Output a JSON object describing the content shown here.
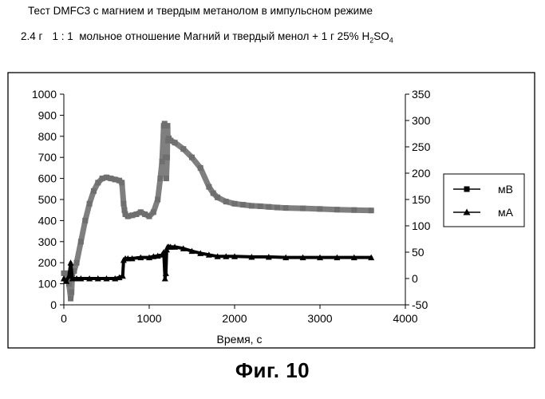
{
  "header": {
    "title": "Тест DMFC3 с магнием и твердым метанолом в импульсном режиме",
    "subtitle_mass": "2.4 г",
    "subtitle_ratio": "1 : 1",
    "subtitle_text": "мольное отношение Магний и твердый менол + 1 г  25% H",
    "subtitle_sub1": "2",
    "subtitle_so": "SO",
    "subtitle_sub2": "4"
  },
  "figure_caption": "Фиг. 10",
  "chart_data": {
    "type": "line",
    "title": "",
    "xlabel": "Время, с",
    "ylabel_left": "",
    "ylabel_right": "",
    "xlim": [
      0,
      4000
    ],
    "ylim_left": [
      0,
      1000
    ],
    "ylim_right": [
      -50,
      350
    ],
    "x_ticks": [
      0,
      1000,
      2000,
      3000,
      4000
    ],
    "y_left_ticks": [
      0,
      100,
      200,
      300,
      400,
      500,
      600,
      700,
      800,
      900,
      1000
    ],
    "y_right_ticks": [
      -50,
      0,
      50,
      100,
      150,
      200,
      250,
      300,
      350
    ],
    "grid": false,
    "legend_position": "right",
    "series": [
      {
        "name": "мВ",
        "axis": "left",
        "marker": "square",
        "color": "#7f7f7f",
        "x": [
          0,
          30,
          60,
          80,
          90,
          100,
          120,
          150,
          200,
          250,
          300,
          350,
          400,
          450,
          500,
          550,
          600,
          650,
          680,
          700,
          710,
          720,
          750,
          800,
          850,
          900,
          950,
          1000,
          1050,
          1100,
          1130,
          1150,
          1170,
          1180,
          1190,
          1200,
          1210,
          1215,
          1220,
          1230,
          1250,
          1300,
          1400,
          1500,
          1600,
          1700,
          1750,
          1800,
          1900,
          2000,
          2100,
          2200,
          2300,
          2400,
          2500,
          2600,
          2800,
          3000,
          3200,
          3400,
          3600
        ],
        "y": [
          150,
          150,
          100,
          30,
          60,
          150,
          160,
          200,
          300,
          400,
          480,
          540,
          580,
          600,
          605,
          600,
          595,
          590,
          580,
          480,
          450,
          430,
          420,
          425,
          430,
          440,
          430,
          420,
          440,
          500,
          600,
          680,
          850,
          860,
          700,
          600,
          700,
          850,
          780,
          790,
          780,
          770,
          740,
          700,
          650,
          560,
          530,
          510,
          490,
          480,
          475,
          470,
          468,
          465,
          462,
          460,
          458,
          455,
          452,
          450,
          448
        ]
      },
      {
        "name": "мА",
        "axis": "right",
        "marker": "triangle",
        "color": "#000000",
        "x": [
          0,
          30,
          60,
          80,
          100,
          150,
          200,
          300,
          400,
          500,
          600,
          650,
          690,
          700,
          720,
          750,
          800,
          900,
          1000,
          1050,
          1100,
          1150,
          1170,
          1185,
          1195,
          1205,
          1215,
          1230,
          1250,
          1300,
          1400,
          1500,
          1600,
          1700,
          1800,
          1900,
          2000,
          2200,
          2400,
          2600,
          2800,
          3000,
          3200,
          3400,
          3600
        ],
        "y": [
          0,
          -5,
          5,
          30,
          0,
          0,
          0,
          0,
          0,
          0,
          0,
          2,
          5,
          35,
          38,
          38,
          38,
          40,
          40,
          42,
          43,
          45,
          50,
          0,
          10,
          55,
          60,
          60,
          60,
          60,
          57,
          52,
          48,
          45,
          42,
          42,
          42,
          41,
          41,
          40,
          40,
          40,
          40,
          40,
          40
        ]
      }
    ]
  }
}
